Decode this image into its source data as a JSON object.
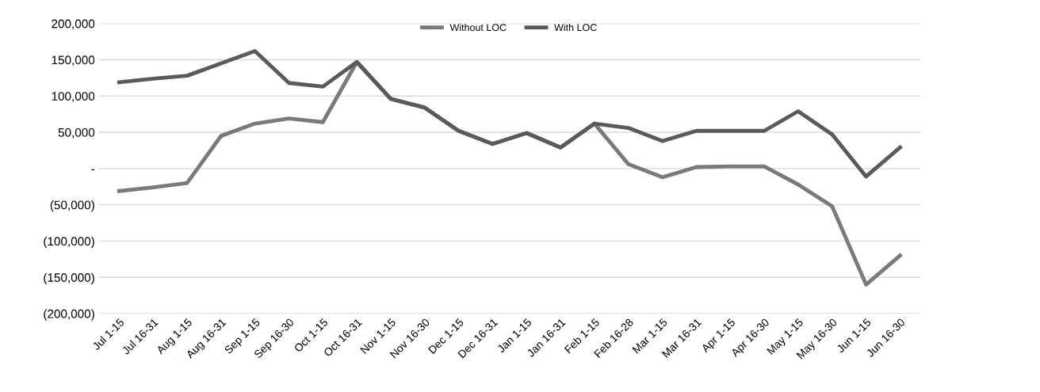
{
  "chart_data": {
    "type": "line",
    "categories": [
      "Jul 1-15",
      "Jul 16-31",
      "Aug 1-15",
      "Aug 16-31",
      "Sep 1-15",
      "Sep 16-30",
      "Oct 1-15",
      "Oct 16-31",
      "Nov 1-15",
      "Nov 16-30",
      "Dec 1-15",
      "Dec 16-31",
      "Jan 1-15",
      "Jan 16-31",
      "Feb 1-15",
      "Feb 16-28",
      "Mar 1-15",
      "Mar 16-31",
      "Apr 1-15",
      "Apr 16-30",
      "May 1-15",
      "May 16-30",
      "Jun 1-15",
      "Jun 16-30"
    ],
    "series": [
      {
        "name": "Without LOC",
        "color": "#7a7a7a",
        "values": [
          -31000,
          -26000,
          -20000,
          45000,
          62000,
          69000,
          64000,
          147000,
          96000,
          84000,
          52000,
          34000,
          49000,
          29000,
          62000,
          6000,
          -12000,
          2000,
          3000,
          3000,
          -22000,
          -52000,
          -160000,
          -120000
        ]
      },
      {
        "name": "With LOC",
        "color": "#5a5a5a",
        "values": [
          119000,
          124000,
          128000,
          145000,
          162000,
          118000,
          113000,
          147000,
          96000,
          84000,
          52000,
          34000,
          49000,
          29000,
          62000,
          56000,
          38000,
          52000,
          52000,
          52000,
          79000,
          47000,
          -11000,
          29000
        ]
      }
    ],
    "ylim": [
      -200000,
      200000
    ],
    "yticks": [
      {
        "value": -200000,
        "label": "(200,000)"
      },
      {
        "value": -150000,
        "label": "(150,000)"
      },
      {
        "value": -100000,
        "label": "(100,000)"
      },
      {
        "value": -50000,
        "label": "(50,000)"
      },
      {
        "value": 0,
        "label": "-"
      },
      {
        "value": 50000,
        "label": "50,000"
      },
      {
        "value": 100000,
        "label": "100,000"
      },
      {
        "value": 150000,
        "label": "150,000"
      },
      {
        "value": 200000,
        "label": "200,000"
      }
    ],
    "grid": "y",
    "legend": "top",
    "marker": "none",
    "line_style": "solid"
  }
}
